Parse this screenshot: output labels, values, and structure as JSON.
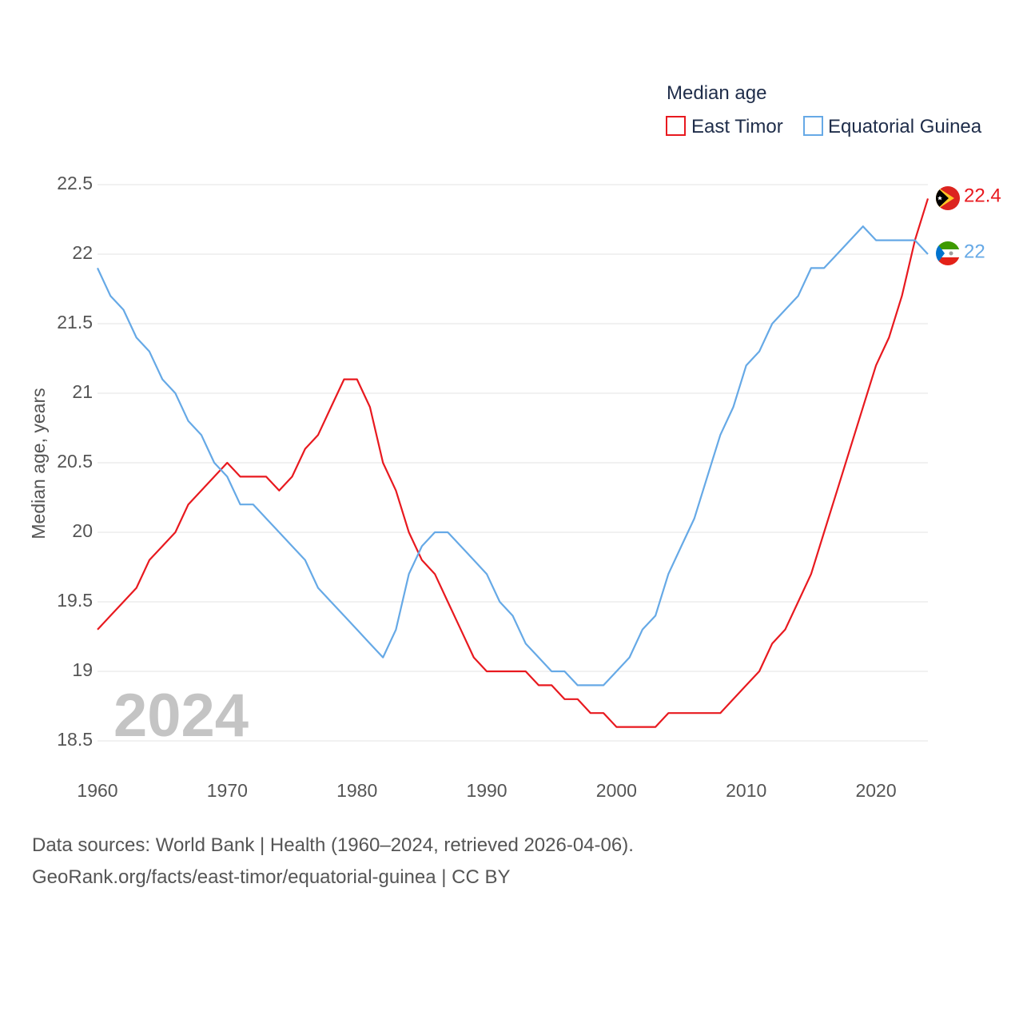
{
  "chart_data": {
    "type": "line",
    "title": "",
    "xlabel": "",
    "ylabel": "Median age, years",
    "xlim": [
      1960,
      2024
    ],
    "ylim": [
      18.5,
      22.5
    ],
    "x_ticks": [
      1960,
      1970,
      1980,
      1990,
      2000,
      2010,
      2020
    ],
    "y_ticks": [
      18.5,
      19,
      19.5,
      20,
      20.5,
      21,
      21.5,
      22,
      22.5
    ],
    "grid": true,
    "legend": {
      "title": "Median age",
      "position": "top-right"
    },
    "year_watermark": "2024",
    "x": [
      1960,
      1961,
      1962,
      1963,
      1964,
      1965,
      1966,
      1967,
      1968,
      1969,
      1970,
      1971,
      1972,
      1973,
      1974,
      1975,
      1976,
      1977,
      1978,
      1979,
      1980,
      1981,
      1982,
      1983,
      1984,
      1985,
      1986,
      1987,
      1988,
      1989,
      1990,
      1991,
      1992,
      1993,
      1994,
      1995,
      1996,
      1997,
      1998,
      1999,
      2000,
      2001,
      2002,
      2003,
      2004,
      2005,
      2006,
      2007,
      2008,
      2009,
      2010,
      2011,
      2012,
      2013,
      2014,
      2015,
      2016,
      2017,
      2018,
      2019,
      2020,
      2021,
      2022,
      2023,
      2024
    ],
    "series": [
      {
        "name": "East Timor",
        "color": "#e8191f",
        "end_label": "22.4",
        "flag": "east-timor-flag-icon",
        "values": [
          19.3,
          19.4,
          19.5,
          19.6,
          19.8,
          19.9,
          20.0,
          20.2,
          20.3,
          20.4,
          20.5,
          20.4,
          20.4,
          20.4,
          20.3,
          20.4,
          20.6,
          20.7,
          20.9,
          21.1,
          21.1,
          20.9,
          20.5,
          20.3,
          20.0,
          19.8,
          19.7,
          19.5,
          19.3,
          19.1,
          19.0,
          19.0,
          19.0,
          19.0,
          18.9,
          18.9,
          18.8,
          18.8,
          18.7,
          18.7,
          18.6,
          18.6,
          18.6,
          18.6,
          18.7,
          18.7,
          18.7,
          18.7,
          18.7,
          18.8,
          18.9,
          19.0,
          19.2,
          19.3,
          19.5,
          19.7,
          20.0,
          20.3,
          20.6,
          20.9,
          21.2,
          21.4,
          21.7,
          22.1,
          22.4
        ]
      },
      {
        "name": "Equatorial Guinea",
        "color": "#66a9e6",
        "end_label": "22",
        "flag": "equatorial-guinea-flag-icon",
        "values": [
          21.9,
          21.7,
          21.6,
          21.4,
          21.3,
          21.1,
          21.0,
          20.8,
          20.7,
          20.5,
          20.4,
          20.2,
          20.2,
          20.1,
          20.0,
          19.9,
          19.8,
          19.6,
          19.5,
          19.4,
          19.3,
          19.2,
          19.1,
          19.3,
          19.7,
          19.9,
          20.0,
          20.0,
          19.9,
          19.8,
          19.7,
          19.5,
          19.4,
          19.2,
          19.1,
          19.0,
          19.0,
          18.9,
          18.9,
          18.9,
          19.0,
          19.1,
          19.3,
          19.4,
          19.7,
          19.9,
          20.1,
          20.4,
          20.7,
          20.9,
          21.2,
          21.3,
          21.5,
          21.6,
          21.7,
          21.9,
          21.9,
          22.0,
          22.1,
          22.2,
          22.1,
          22.1,
          22.1,
          22.1,
          22.0
        ]
      }
    ]
  },
  "footer": {
    "source_line": "Data sources: World Bank | Health (1960–2024, retrieved 2026-04-06).",
    "attribution_line": "GeoRank.org/facts/east-timor/equatorial-guinea | CC BY"
  }
}
